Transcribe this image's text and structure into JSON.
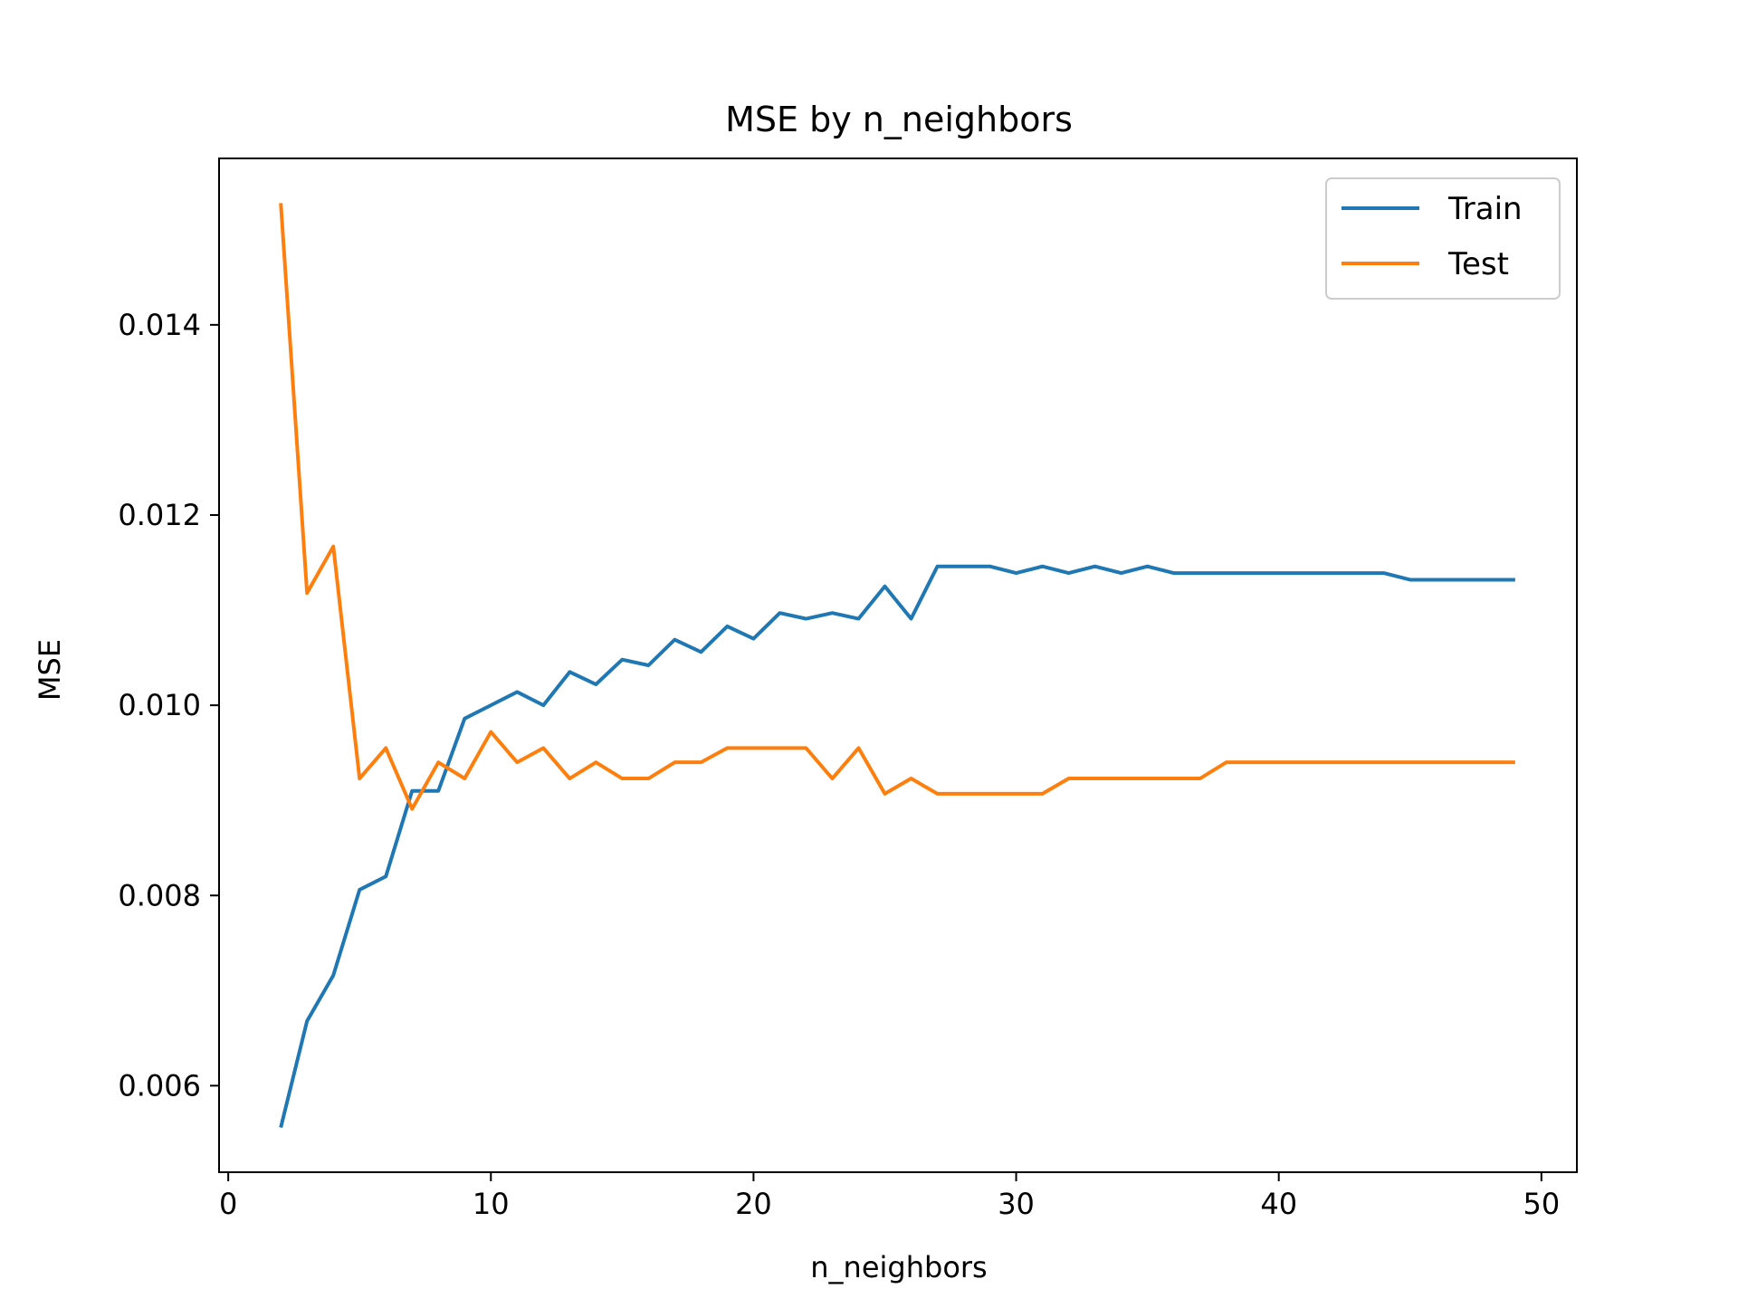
{
  "chart_data": {
    "type": "line",
    "title": "MSE by n_neighbors",
    "xlabel": "n_neighbors",
    "ylabel": "MSE",
    "xlim": [
      -0.35,
      51.35
    ],
    "ylim": [
      0.00509,
      0.01575
    ],
    "x_ticks": [
      0,
      10,
      20,
      30,
      40,
      50
    ],
    "y_ticks": [
      0.006,
      0.008,
      0.01,
      0.012,
      0.014
    ],
    "x_tick_labels": [
      "0",
      "10",
      "20",
      "30",
      "40",
      "50"
    ],
    "y_tick_labels": [
      "0.006",
      "0.008",
      "0.010",
      "0.012",
      "0.014"
    ],
    "grid": false,
    "legend_position": "top-right",
    "x": [
      2,
      3,
      4,
      5,
      6,
      7,
      8,
      9,
      10,
      11,
      12,
      13,
      14,
      15,
      16,
      17,
      18,
      19,
      20,
      21,
      22,
      23,
      24,
      25,
      26,
      27,
      28,
      29,
      30,
      31,
      32,
      33,
      34,
      35,
      36,
      37,
      38,
      39,
      40,
      41,
      42,
      43,
      44,
      45,
      46,
      47,
      48,
      49
    ],
    "series": [
      {
        "name": "Train",
        "color": "#1f77b4",
        "values": [
          0.00556,
          0.00668,
          0.00716,
          0.00806,
          0.0082,
          0.0091,
          0.0091,
          0.00986,
          0.01,
          0.01014,
          0.01,
          0.01035,
          0.01022,
          0.01048,
          0.01042,
          0.01069,
          0.01056,
          0.01083,
          0.0107,
          0.01097,
          0.01091,
          0.01097,
          0.01091,
          0.01125,
          0.01091,
          0.01146,
          0.01146,
          0.01146,
          0.01139,
          0.01146,
          0.01139,
          0.01146,
          0.01139,
          0.01146,
          0.01139,
          0.01139,
          0.01139,
          0.01139,
          0.01139,
          0.01139,
          0.01139,
          0.01139,
          0.01139,
          0.01132,
          0.01132,
          0.01132,
          0.01132,
          0.01132
        ]
      },
      {
        "name": "Test",
        "color": "#ff7f0e",
        "values": [
          0.01528,
          0.01118,
          0.01167,
          0.00923,
          0.00955,
          0.00891,
          0.0094,
          0.00923,
          0.00972,
          0.0094,
          0.00955,
          0.00923,
          0.0094,
          0.00923,
          0.00923,
          0.0094,
          0.0094,
          0.00955,
          0.00955,
          0.00955,
          0.00955,
          0.00923,
          0.00955,
          0.00907,
          0.00923,
          0.00907,
          0.00907,
          0.00907,
          0.00907,
          0.00907,
          0.00923,
          0.00923,
          0.00923,
          0.00923,
          0.00923,
          0.00923,
          0.0094,
          0.0094,
          0.0094,
          0.0094,
          0.0094,
          0.0094,
          0.0094,
          0.0094,
          0.0094,
          0.0094,
          0.0094,
          0.0094
        ]
      }
    ]
  },
  "colors": {
    "train": "#1f77b4",
    "test": "#ff7f0e",
    "axes": "#000000",
    "legend_border": "#cccccc"
  }
}
